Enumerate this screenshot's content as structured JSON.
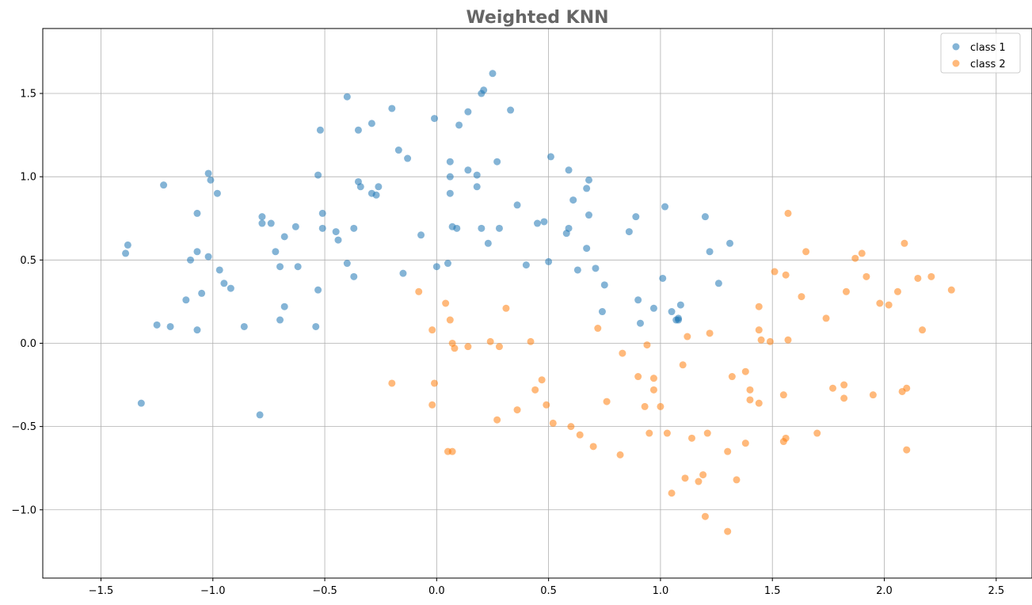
{
  "chart_data": {
    "type": "scatter",
    "title": "Weighted KNN",
    "xlabel": "",
    "ylabel": "",
    "xlim": [
      -1.76,
      2.66
    ],
    "ylim": [
      -1.41,
      1.89
    ],
    "xticks": [
      -1.5,
      -1.0,
      -0.5,
      0.0,
      0.5,
      1.0,
      1.5,
      2.0,
      2.5
    ],
    "yticks": [
      -1.0,
      -0.5,
      0.0,
      0.5,
      1.0,
      1.5
    ],
    "xtick_labels": [
      "−1.5",
      "−1.0",
      "−0.5",
      "0.0",
      "0.5",
      "1.0",
      "1.5",
      "2.0",
      "2.5"
    ],
    "ytick_labels": [
      "−1.0",
      "−0.5",
      "0.0",
      "0.5",
      "1.0",
      "1.5"
    ],
    "grid": true,
    "legend_position": "top-right",
    "series": [
      {
        "name": "class 1",
        "color": "#1f77b4",
        "points": [
          [
            -1.38,
            0.59
          ],
          [
            -1.39,
            0.54
          ],
          [
            -1.32,
            -0.36
          ],
          [
            -1.25,
            0.11
          ],
          [
            -1.22,
            0.95
          ],
          [
            -1.19,
            0.1
          ],
          [
            -1.12,
            0.26
          ],
          [
            -1.1,
            0.5
          ],
          [
            -1.07,
            0.55
          ],
          [
            -1.07,
            0.78
          ],
          [
            -1.07,
            0.08
          ],
          [
            -1.05,
            0.3
          ],
          [
            -1.02,
            0.52
          ],
          [
            -1.02,
            1.02
          ],
          [
            -1.01,
            0.98
          ],
          [
            -0.98,
            0.9
          ],
          [
            -0.97,
            0.44
          ],
          [
            -0.95,
            0.36
          ],
          [
            -0.92,
            0.33
          ],
          [
            -0.86,
            0.1
          ],
          [
            -0.79,
            -0.43
          ],
          [
            -0.78,
            0.72
          ],
          [
            -0.78,
            0.76
          ],
          [
            -0.74,
            0.72
          ],
          [
            -0.72,
            0.55
          ],
          [
            -0.7,
            0.46
          ],
          [
            -0.7,
            0.14
          ],
          [
            -0.68,
            0.22
          ],
          [
            -0.68,
            0.64
          ],
          [
            -0.63,
            0.7
          ],
          [
            -0.62,
            0.46
          ],
          [
            -0.54,
            0.1
          ],
          [
            -0.53,
            1.01
          ],
          [
            -0.53,
            0.32
          ],
          [
            -0.52,
            1.28
          ],
          [
            -0.51,
            0.78
          ],
          [
            -0.51,
            0.69
          ],
          [
            -0.45,
            0.67
          ],
          [
            -0.44,
            0.62
          ],
          [
            -0.4,
            1.48
          ],
          [
            -0.4,
            0.48
          ],
          [
            -0.37,
            0.69
          ],
          [
            -0.37,
            0.4
          ],
          [
            -0.35,
            0.97
          ],
          [
            -0.35,
            1.28
          ],
          [
            -0.34,
            0.94
          ],
          [
            -0.29,
            0.9
          ],
          [
            -0.29,
            1.32
          ],
          [
            -0.27,
            0.89
          ],
          [
            -0.26,
            0.94
          ],
          [
            -0.2,
            1.41
          ],
          [
            -0.17,
            1.16
          ],
          [
            -0.15,
            0.42
          ],
          [
            -0.13,
            1.11
          ],
          [
            -0.07,
            0.65
          ],
          [
            -0.01,
            1.35
          ],
          [
            0.0,
            0.46
          ],
          [
            0.05,
            0.48
          ],
          [
            0.06,
            0.9
          ],
          [
            0.06,
            1.0
          ],
          [
            0.06,
            1.09
          ],
          [
            0.07,
            0.7
          ],
          [
            0.09,
            0.69
          ],
          [
            0.1,
            1.31
          ],
          [
            0.14,
            1.04
          ],
          [
            0.14,
            1.39
          ],
          [
            0.18,
            0.94
          ],
          [
            0.18,
            1.01
          ],
          [
            0.2,
            0.69
          ],
          [
            0.2,
            1.5
          ],
          [
            0.21,
            1.52
          ],
          [
            0.23,
            0.6
          ],
          [
            0.25,
            1.62
          ],
          [
            0.27,
            1.09
          ],
          [
            0.28,
            0.69
          ],
          [
            0.33,
            1.4
          ],
          [
            0.36,
            0.83
          ],
          [
            0.4,
            0.47
          ],
          [
            0.45,
            0.72
          ],
          [
            0.48,
            0.73
          ],
          [
            0.5,
            0.49
          ],
          [
            0.51,
            1.12
          ],
          [
            0.58,
            0.66
          ],
          [
            0.59,
            0.69
          ],
          [
            0.59,
            1.04
          ],
          [
            0.61,
            0.86
          ],
          [
            0.63,
            0.44
          ],
          [
            0.67,
            0.93
          ],
          [
            0.67,
            0.57
          ],
          [
            0.68,
            0.98
          ],
          [
            0.68,
            0.77
          ],
          [
            0.71,
            0.45
          ],
          [
            0.74,
            0.19
          ],
          [
            0.75,
            0.35
          ],
          [
            0.86,
            0.67
          ],
          [
            0.89,
            0.76
          ],
          [
            0.9,
            0.26
          ],
          [
            0.91,
            0.12
          ],
          [
            0.97,
            0.21
          ],
          [
            1.01,
            0.39
          ],
          [
            1.02,
            0.82
          ],
          [
            1.05,
            0.19
          ],
          [
            1.07,
            0.14
          ],
          [
            1.08,
            0.14
          ],
          [
            1.08,
            0.15
          ],
          [
            1.09,
            0.23
          ],
          [
            1.2,
            0.76
          ],
          [
            1.22,
            0.55
          ],
          [
            1.26,
            0.36
          ],
          [
            1.31,
            0.6
          ]
        ]
      },
      {
        "name": "class 2",
        "color": "#ff7f0e",
        "points": [
          [
            -0.2,
            -0.24
          ],
          [
            -0.08,
            0.31
          ],
          [
            -0.02,
            0.08
          ],
          [
            -0.02,
            -0.37
          ],
          [
            -0.01,
            -0.24
          ],
          [
            0.04,
            0.24
          ],
          [
            0.05,
            -0.65
          ],
          [
            0.06,
            0.14
          ],
          [
            0.07,
            0.0
          ],
          [
            0.07,
            -0.65
          ],
          [
            0.08,
            -0.03
          ],
          [
            0.14,
            -0.02
          ],
          [
            0.24,
            0.01
          ],
          [
            0.27,
            -0.46
          ],
          [
            0.28,
            -0.02
          ],
          [
            0.31,
            0.21
          ],
          [
            0.36,
            -0.4
          ],
          [
            0.42,
            0.01
          ],
          [
            0.44,
            -0.28
          ],
          [
            0.47,
            -0.22
          ],
          [
            0.49,
            -0.37
          ],
          [
            0.52,
            -0.48
          ],
          [
            0.6,
            -0.5
          ],
          [
            0.64,
            -0.55
          ],
          [
            0.7,
            -0.62
          ],
          [
            0.72,
            0.09
          ],
          [
            0.76,
            -0.35
          ],
          [
            0.82,
            -0.67
          ],
          [
            0.83,
            -0.06
          ],
          [
            0.9,
            -0.2
          ],
          [
            0.93,
            -0.38
          ],
          [
            0.94,
            -0.01
          ],
          [
            0.95,
            -0.54
          ],
          [
            0.97,
            -0.21
          ],
          [
            0.97,
            -0.28
          ],
          [
            1.0,
            -0.38
          ],
          [
            1.03,
            -0.54
          ],
          [
            1.05,
            -0.9
          ],
          [
            1.1,
            -0.13
          ],
          [
            1.11,
            -0.81
          ],
          [
            1.12,
            0.04
          ],
          [
            1.14,
            -0.57
          ],
          [
            1.17,
            -0.83
          ],
          [
            1.19,
            -0.79
          ],
          [
            1.2,
            -1.04
          ],
          [
            1.21,
            -0.54
          ],
          [
            1.22,
            0.06
          ],
          [
            1.3,
            -0.65
          ],
          [
            1.3,
            -1.13
          ],
          [
            1.32,
            -0.2
          ],
          [
            1.34,
            -0.82
          ],
          [
            1.38,
            -0.17
          ],
          [
            1.38,
            -0.6
          ],
          [
            1.4,
            -0.34
          ],
          [
            1.4,
            -0.28
          ],
          [
            1.44,
            0.08
          ],
          [
            1.44,
            -0.36
          ],
          [
            1.44,
            0.22
          ],
          [
            1.45,
            0.02
          ],
          [
            1.49,
            0.01
          ],
          [
            1.51,
            0.43
          ],
          [
            1.55,
            -0.31
          ],
          [
            1.55,
            -0.59
          ],
          [
            1.56,
            -0.57
          ],
          [
            1.56,
            0.41
          ],
          [
            1.57,
            0.78
          ],
          [
            1.57,
            0.02
          ],
          [
            1.63,
            0.28
          ],
          [
            1.65,
            0.55
          ],
          [
            1.7,
            -0.54
          ],
          [
            1.74,
            0.15
          ],
          [
            1.77,
            -0.27
          ],
          [
            1.82,
            -0.25
          ],
          [
            1.82,
            -0.33
          ],
          [
            1.83,
            0.31
          ],
          [
            1.87,
            0.51
          ],
          [
            1.9,
            0.54
          ],
          [
            1.92,
            0.4
          ],
          [
            1.95,
            -0.31
          ],
          [
            1.98,
            0.24
          ],
          [
            2.02,
            0.23
          ],
          [
            2.06,
            0.31
          ],
          [
            2.08,
            -0.29
          ],
          [
            2.09,
            0.6
          ],
          [
            2.1,
            -0.64
          ],
          [
            2.1,
            -0.27
          ],
          [
            2.15,
            0.39
          ],
          [
            2.17,
            0.08
          ],
          [
            2.21,
            0.4
          ],
          [
            2.3,
            0.32
          ]
        ]
      }
    ]
  }
}
